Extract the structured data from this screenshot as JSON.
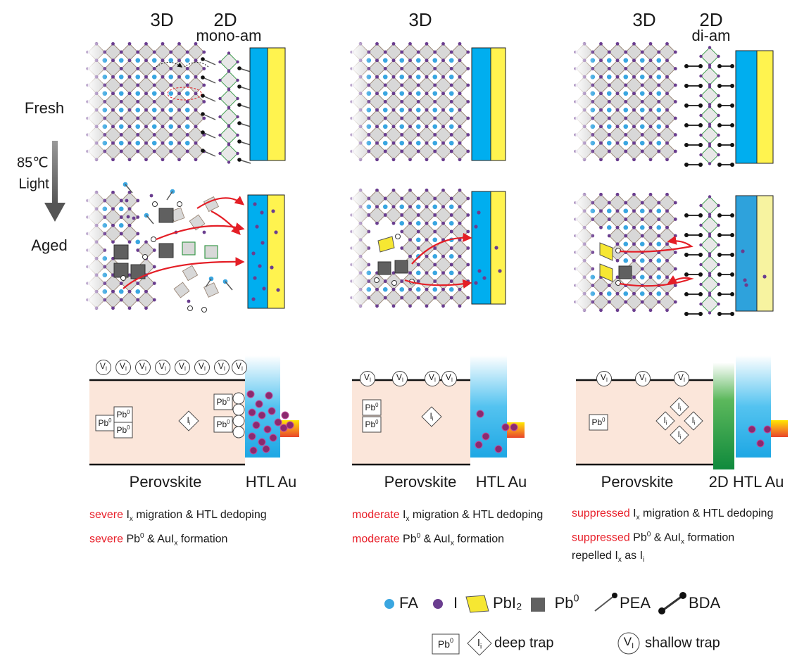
{
  "row_labels": {
    "fresh": "Fresh",
    "temperature": "85℃",
    "light": "Light",
    "aged": "Aged"
  },
  "panels": [
    {
      "heading": "3D",
      "layer_heading": "2D",
      "layer_type": "mono-am",
      "band_left": "Perovskite",
      "band_right": "HTL Au",
      "captions": [
        [
          {
            "text": "severe",
            "style": "red"
          },
          {
            "text": " I"
          },
          {
            "text": "x",
            "style": "sub"
          },
          {
            "text": " migration & HTL dedoping"
          }
        ],
        [
          {
            "text": "severe",
            "style": "red"
          },
          {
            "text": " Pb"
          },
          {
            "text": "0",
            "style": "sup"
          },
          {
            "text": " & AuI"
          },
          {
            "text": "x",
            "style": "sub"
          },
          {
            "text": " formation"
          }
        ]
      ]
    },
    {
      "heading": "3D",
      "band_left": "Perovskite",
      "band_right": "HTL Au",
      "captions": [
        [
          {
            "text": "moderate",
            "style": "red"
          },
          {
            "text": " I"
          },
          {
            "text": "x",
            "style": "sub"
          },
          {
            "text": " migration & HTL dedoping"
          }
        ],
        [
          {
            "text": "moderate",
            "style": "red"
          },
          {
            "text": " Pb"
          },
          {
            "text": "0",
            "style": "sup"
          },
          {
            "text": " & AuI"
          },
          {
            "text": "x",
            "style": "sub"
          },
          {
            "text": " formation"
          }
        ]
      ]
    },
    {
      "heading": "3D",
      "layer_heading": "2D",
      "layer_type": "di-am",
      "band_left": "Perovskite",
      "band_right": "2D HTL Au",
      "captions": [
        [
          {
            "text": "suppressed",
            "style": "red"
          },
          {
            "text": " I"
          },
          {
            "text": "x",
            "style": "sub"
          },
          {
            "text": " migration & HTL dedoping"
          }
        ],
        [
          {
            "text": "suppressed",
            "style": "red"
          },
          {
            "text": " Pb"
          },
          {
            "text": "0",
            "style": "sup"
          },
          {
            "text": " & AuI"
          },
          {
            "text": "x",
            "style": "sub"
          },
          {
            "text": " formation"
          }
        ],
        [
          {
            "text": "repelled I"
          },
          {
            "text": "x",
            "style": "sub"
          },
          {
            "text": " as I"
          },
          {
            "text": "i",
            "style": "sub"
          }
        ]
      ]
    }
  ],
  "symbols": {
    "vacancy": {
      "base": "V",
      "sub": "I"
    },
    "lead": {
      "base": "Pb",
      "sup": "0"
    },
    "interstitial": {
      "base": "I",
      "sub": "i"
    }
  },
  "legend": {
    "fa": "FA",
    "iodide": "I",
    "pbi2": "PbI₂",
    "pea": "PEA",
    "bda": "BDA",
    "deep_trap": "deep trap",
    "shallow_trap": "shallow trap"
  }
}
